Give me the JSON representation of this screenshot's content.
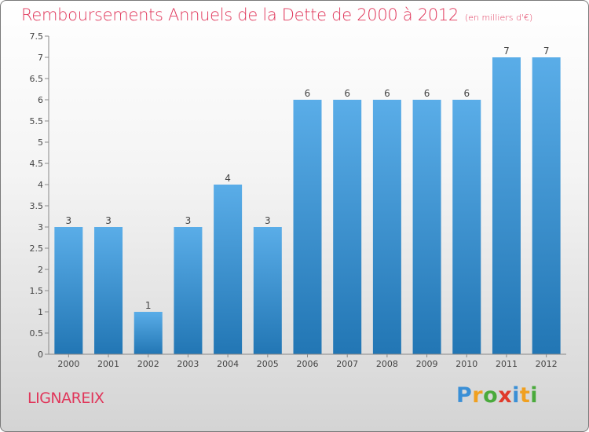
{
  "chart_data": {
    "type": "bar",
    "title": "Remboursements Annuels de la Dette de 2000 à 2012",
    "subtitle": "(en milliers d'€)",
    "categories": [
      "2000",
      "2001",
      "2002",
      "2003",
      "2004",
      "2005",
      "2006",
      "2007",
      "2008",
      "2009",
      "2010",
      "2011",
      "2012"
    ],
    "values": [
      3,
      3,
      1,
      3,
      4,
      3,
      6,
      6,
      6,
      6,
      6,
      7,
      7
    ],
    "ylim": [
      0,
      7.5
    ],
    "yticks": [
      "0",
      "0.5",
      "1",
      "1.5",
      "2",
      "2.5",
      "3",
      "3.5",
      "4",
      "4.5",
      "5",
      "5.5",
      "6",
      "6.5",
      "7",
      "7.5"
    ],
    "grid": false,
    "bar_color_top": "#5aade8",
    "bar_color_bottom": "#2276b4",
    "title_color": "#e0365a"
  },
  "place": "LIGNAREIX",
  "logo": {
    "letters": [
      {
        "ch": "P",
        "color": "#3a8fd6"
      },
      {
        "ch": "r",
        "color": "#f0a020"
      },
      {
        "ch": "o",
        "color": "#4aaa3c"
      },
      {
        "ch": "x",
        "color": "#e03a2a"
      },
      {
        "ch": "i",
        "color": "#3a8fd6"
      },
      {
        "ch": "t",
        "color": "#f0a020"
      },
      {
        "ch": "i",
        "color": "#4aaa3c"
      }
    ]
  }
}
